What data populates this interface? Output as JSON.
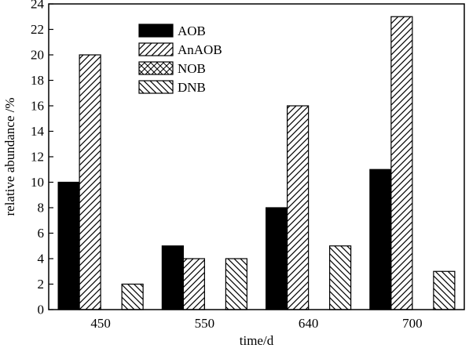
{
  "chart_data": {
    "type": "bar",
    "title": "",
    "xlabel": "time/d",
    "ylabel": "relative abundance /%",
    "categories": [
      "450",
      "550",
      "640",
      "700"
    ],
    "ylim": [
      0,
      24
    ],
    "yticks": [
      0,
      2,
      4,
      6,
      8,
      10,
      12,
      14,
      16,
      18,
      20,
      22,
      24
    ],
    "grid": false,
    "legend_position": "top-center",
    "series": [
      {
        "name": "AOB",
        "values": [
          10,
          5,
          8,
          11
        ],
        "pattern": "solid",
        "color": "#000000"
      },
      {
        "name": "AnAOB",
        "values": [
          20,
          4,
          16,
          23
        ],
        "pattern": "diagonal-up",
        "color": "#000000"
      },
      {
        "name": "NOB",
        "values": [
          0,
          0,
          0,
          0
        ],
        "pattern": "crosshatch",
        "color": "#000000"
      },
      {
        "name": "DNB",
        "values": [
          2,
          4,
          5,
          3
        ],
        "pattern": "diagonal-down",
        "color": "#000000"
      }
    ]
  }
}
